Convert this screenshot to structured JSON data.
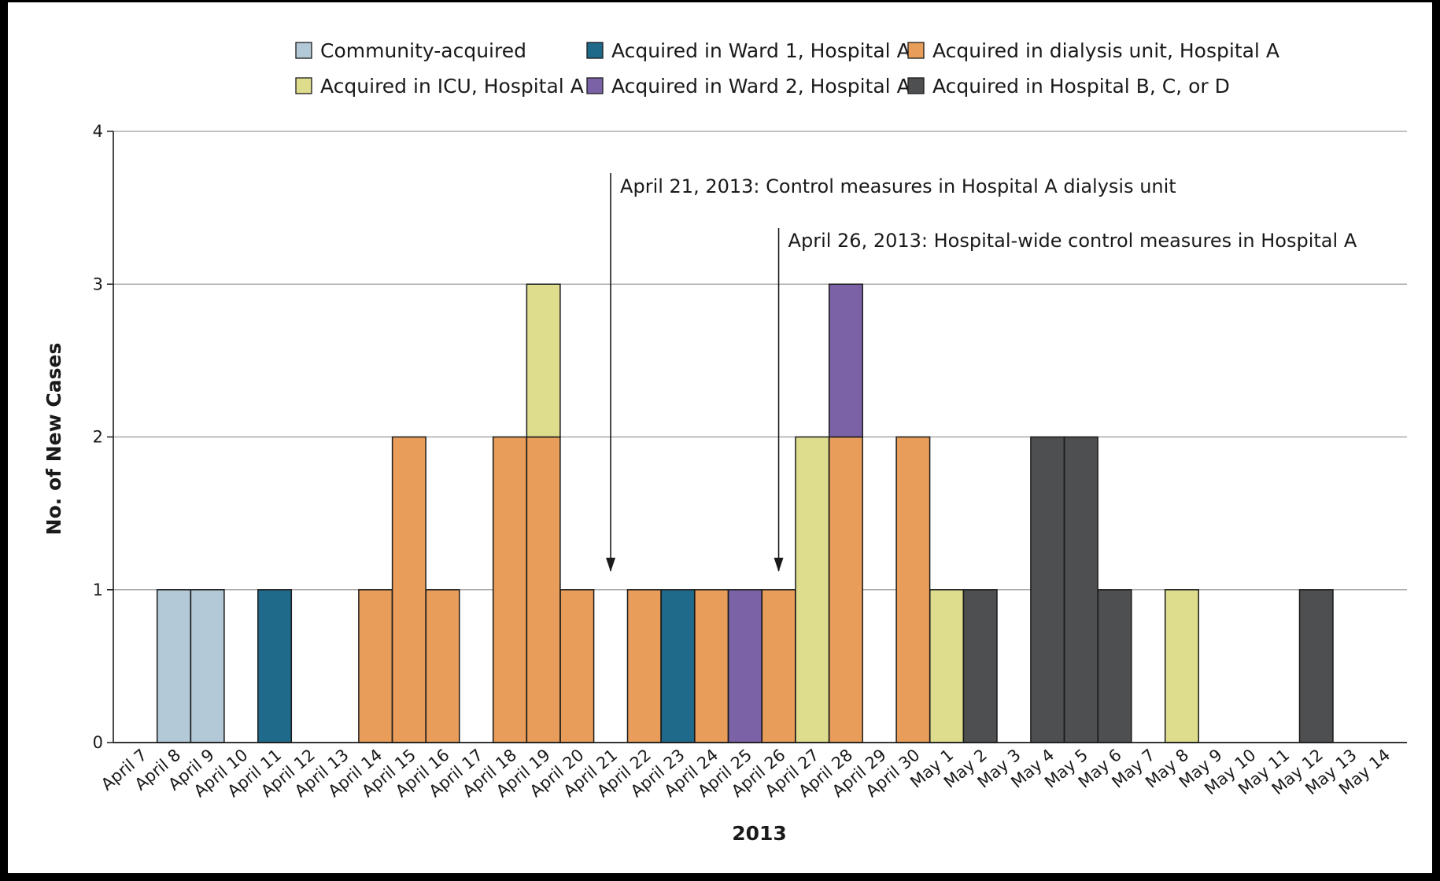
{
  "chart_data": {
    "type": "bar",
    "stacked": true,
    "title": "",
    "xlabel": "2013",
    "ylabel": "No. of New Cases",
    "ylim": [
      0,
      4
    ],
    "yticks": [
      "0",
      "1",
      "2",
      "3",
      "4"
    ],
    "grid": true,
    "legend_position": "top",
    "categories": [
      "April 7",
      "April 8",
      "April 9",
      "April 10",
      "April 11",
      "April 12",
      "April 13",
      "April 14",
      "April 15",
      "April 16",
      "April 17",
      "April 18",
      "April 19",
      "April 20",
      "April 21",
      "April 22",
      "April 23",
      "April 24",
      "April 25",
      "April 26",
      "April 27",
      "April 28",
      "April 29",
      "April 30",
      "May 1",
      "May 2",
      "May 3",
      "May 4",
      "May 5",
      "May 6",
      "May 7",
      "May 8",
      "May 9",
      "May 10",
      "May 11",
      "May 12",
      "May 13",
      "May 14"
    ],
    "series": [
      {
        "name": "Community-acquired",
        "color": "#b3c9d8",
        "values": [
          0,
          1,
          1,
          0,
          0,
          0,
          0,
          0,
          0,
          0,
          0,
          0,
          0,
          0,
          0,
          0,
          0,
          0,
          0,
          0,
          0,
          0,
          0,
          0,
          0,
          0,
          0,
          0,
          0,
          0,
          0,
          0,
          0,
          0,
          0,
          0,
          0,
          0
        ]
      },
      {
        "name": "Acquired in dialysis unit, Hospital A",
        "color": "#e89d5a",
        "values": [
          0,
          0,
          0,
          0,
          0,
          0,
          0,
          1,
          2,
          1,
          0,
          2,
          2,
          1,
          0,
          1,
          0,
          1,
          0,
          1,
          0,
          2,
          0,
          2,
          0,
          0,
          0,
          0,
          0,
          0,
          0,
          0,
          0,
          0,
          0,
          0,
          0,
          0
        ]
      },
      {
        "name": "Acquired in Ward 1, Hospital A",
        "color": "#1f6a8a",
        "values": [
          0,
          0,
          0,
          0,
          1,
          0,
          0,
          0,
          0,
          0,
          0,
          0,
          0,
          0,
          0,
          0,
          1,
          0,
          0,
          0,
          0,
          0,
          0,
          0,
          0,
          0,
          0,
          0,
          0,
          0,
          0,
          0,
          0,
          0,
          0,
          0,
          0,
          0
        ]
      },
      {
        "name": "Acquired in ICU, Hospital A",
        "color": "#dedd8e",
        "values": [
          0,
          0,
          0,
          0,
          0,
          0,
          0,
          0,
          0,
          0,
          0,
          0,
          1,
          0,
          0,
          0,
          0,
          0,
          0,
          0,
          2,
          0,
          0,
          0,
          1,
          0,
          0,
          0,
          0,
          0,
          0,
          1,
          0,
          0,
          0,
          0,
          0,
          0
        ]
      },
      {
        "name": "Acquired in Ward 2, Hospital A",
        "color": "#7b62a6",
        "values": [
          0,
          0,
          0,
          0,
          0,
          0,
          0,
          0,
          0,
          0,
          0,
          0,
          0,
          0,
          0,
          0,
          0,
          0,
          1,
          0,
          0,
          1,
          0,
          0,
          0,
          0,
          0,
          0,
          0,
          0,
          0,
          0,
          0,
          0,
          0,
          0,
          0,
          0
        ]
      },
      {
        "name": "Acquired in Hospital B, C, or D",
        "color": "#4e4f51",
        "values": [
          0,
          0,
          0,
          0,
          0,
          0,
          0,
          0,
          0,
          0,
          0,
          0,
          0,
          0,
          0,
          0,
          0,
          0,
          0,
          0,
          0,
          0,
          0,
          0,
          0,
          1,
          0,
          2,
          2,
          1,
          0,
          0,
          0,
          0,
          0,
          1,
          0,
          0
        ]
      }
    ],
    "legend_order": [
      0,
      3,
      2,
      4,
      1,
      5
    ],
    "annotations": [
      {
        "date": "April 21",
        "label": "April 21, 2013: Control measures in Hospital A dialysis unit"
      },
      {
        "date": "April 26",
        "label": "April 26, 2013: Hospital-wide control measures in Hospital A"
      }
    ]
  }
}
